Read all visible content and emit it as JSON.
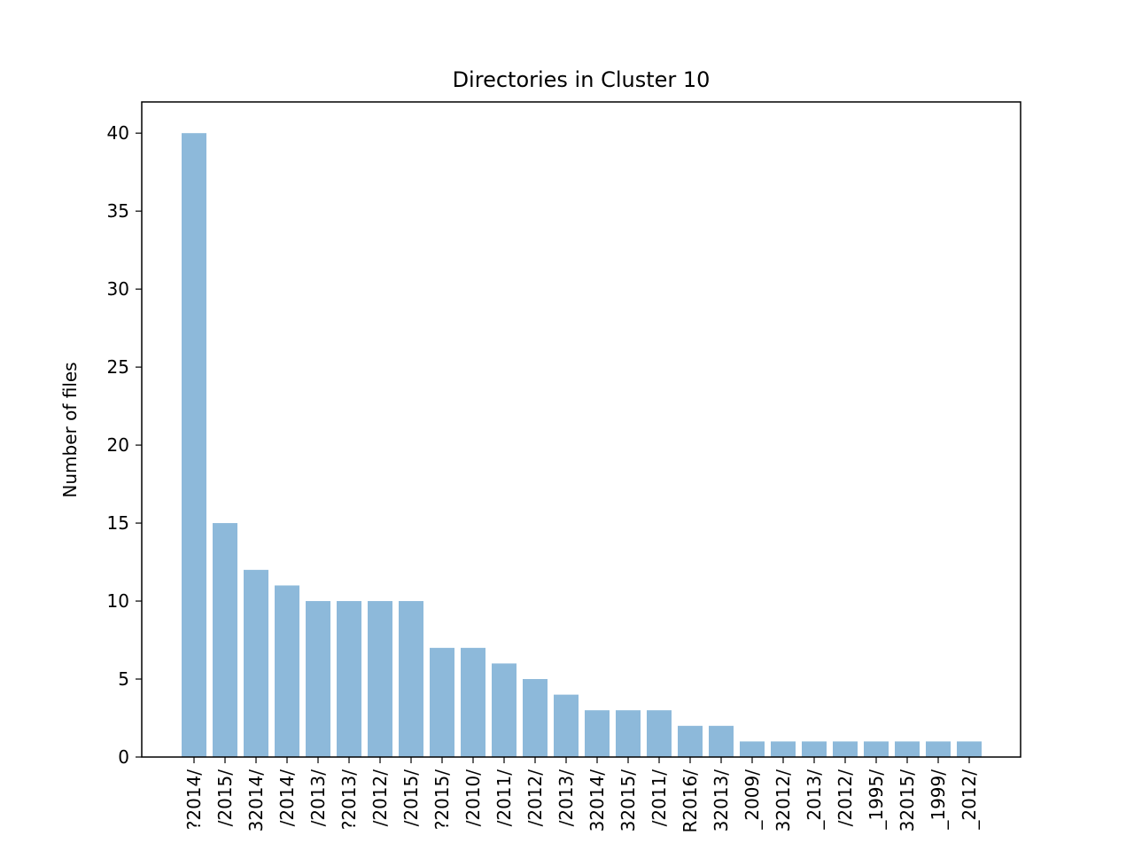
{
  "chart_data": {
    "type": "bar",
    "title": "Directories in Cluster 10",
    "xlabel": "",
    "ylabel": "Number of files",
    "categories": [
      "?2014/",
      "/2015/",
      "32014/",
      "/2014/",
      "/2013/",
      "?2013/",
      "/2012/",
      "/2015/",
      "?2015/",
      "/2010/",
      "/2011/",
      "/2012/",
      "/2013/",
      "32014/",
      "32015/",
      "/2011/",
      "R2016/",
      "32013/",
      "_2009/",
      "32012/",
      "_2013/",
      "/2012/",
      "_1995/",
      "32015/",
      "_1999/",
      "_2012/"
    ],
    "values": [
      40,
      15,
      12,
      11,
      10,
      10,
      10,
      10,
      7,
      7,
      6,
      5,
      4,
      3,
      3,
      3,
      2,
      2,
      1,
      1,
      1,
      1,
      1,
      1,
      1,
      1
    ],
    "ylim": [
      0,
      42
    ],
    "yticks": [
      0,
      5,
      10,
      15,
      20,
      25,
      30,
      35,
      40
    ],
    "grid": false,
    "bar_color": "#8db9da"
  }
}
